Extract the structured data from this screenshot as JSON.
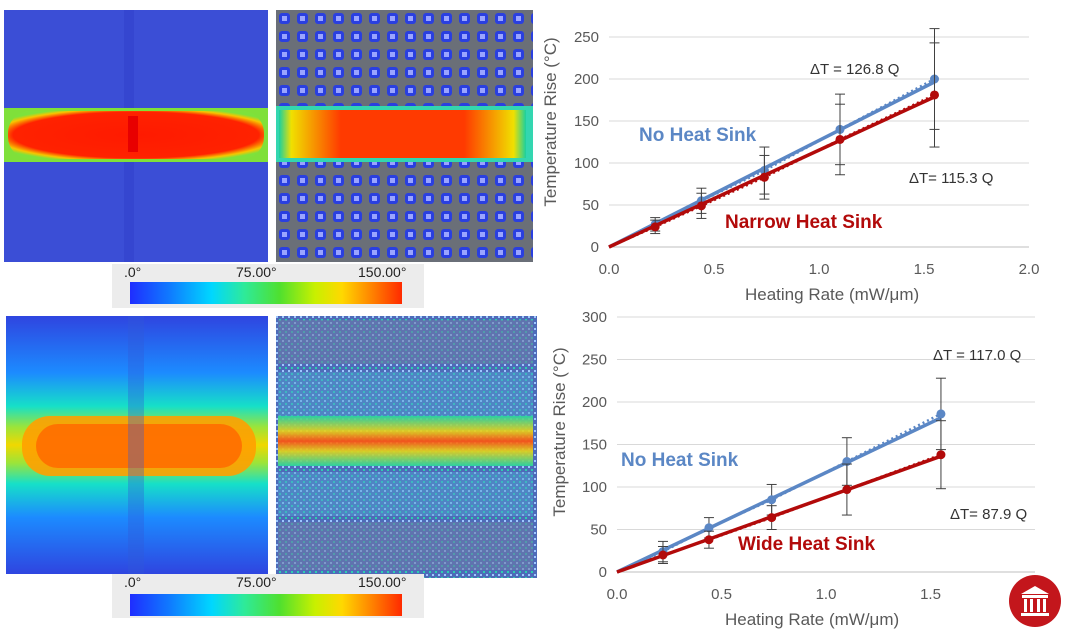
{
  "colorbar": {
    "ticks": [
      ".0°",
      "75.00°",
      "150.00°"
    ]
  },
  "chart_data": [
    {
      "type": "line",
      "xlabel": "Heating Rate (mW/μm)",
      "ylabel": "Temperature Rise (°C)",
      "xlim": [
        0,
        2.0
      ],
      "ylim": [
        0,
        250
      ],
      "xticks": [
        "0.0",
        "0.5",
        "1.0",
        "1.5",
        "2.0"
      ],
      "yticks": [
        "0",
        "50",
        "100",
        "150",
        "200",
        "250"
      ],
      "series": [
        {
          "name": "No Heat Sink",
          "color": "#5b87c5",
          "x": [
            0.22,
            0.44,
            0.74,
            1.1,
            1.55
          ],
          "y": [
            27,
            55,
            91,
            140,
            200
          ],
          "err": [
            8,
            15,
            28,
            42,
            60
          ],
          "fit_slope": 126.8,
          "fit_label": "ΔT = 126.8 Q"
        },
        {
          "name": "Narrow Heat Sink",
          "color": "#b20a0a",
          "x": [
            0.22,
            0.44,
            0.74,
            1.1,
            1.55
          ],
          "y": [
            24,
            49,
            83,
            128,
            181
          ],
          "err": [
            8,
            15,
            26,
            42,
            62
          ],
          "fit_slope": 115.3,
          "fit_label": "ΔT= 115.3 Q"
        }
      ]
    },
    {
      "type": "line",
      "xlabel": "Heating Rate (mW/μm)",
      "ylabel": "Temperature Rise (°C)",
      "xlim": [
        0,
        2.0
      ],
      "ylim": [
        0,
        300
      ],
      "xticks": [
        "0.0",
        "0.5",
        "1.0",
        "1.5"
      ],
      "yticks": [
        "0",
        "50",
        "100",
        "150",
        "200",
        "250",
        "300"
      ],
      "series": [
        {
          "name": "No Heat Sink",
          "color": "#5b87c5",
          "x": [
            0.22,
            0.44,
            0.74,
            1.1,
            1.55
          ],
          "y": [
            24,
            52,
            85,
            130,
            186
          ],
          "err": [
            12,
            12,
            18,
            28,
            42
          ],
          "fit_slope": 117.0,
          "fit_label": "ΔT = 117.0 Q"
        },
        {
          "name": "Wide Heat Sink",
          "color": "#b20a0a",
          "x": [
            0.22,
            0.44,
            0.74,
            1.1,
            1.55
          ],
          "y": [
            20,
            38,
            64,
            97,
            138
          ],
          "err": [
            10,
            10,
            14,
            30,
            40
          ],
          "fit_slope": 87.9,
          "fit_label": "ΔT= 87.9 Q"
        }
      ]
    }
  ]
}
